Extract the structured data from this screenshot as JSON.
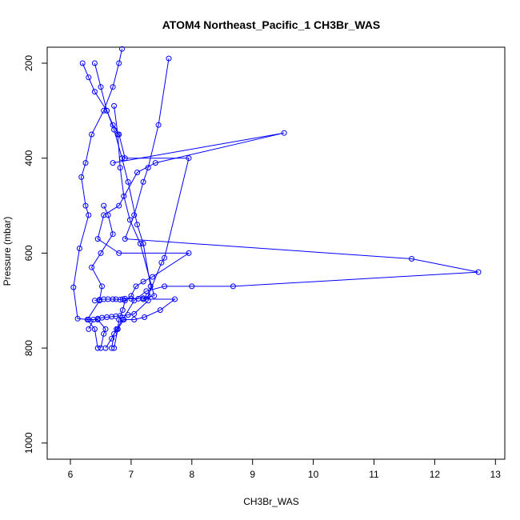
{
  "chart_data": {
    "type": "line",
    "title": "ATOM4 Northeast_Pacific_1 CH3Br_WAS",
    "xlabel": "CH3Br_WAS",
    "ylabel": "Pressure (mbar)",
    "xlim": [
      5.6,
      13.0
    ],
    "ylim": [
      1030,
      160
    ],
    "y_reversed": true,
    "grid": false,
    "legend": "none",
    "xticks": [
      6,
      7,
      8,
      9,
      10,
      11,
      12,
      13
    ],
    "yticks": [
      200,
      400,
      600,
      800,
      1000
    ],
    "series_color": "#0000ff",
    "series": [
      {
        "x": [
          6.45,
          6.4,
          6.28,
          6.48,
          6.52,
          6.35,
          6.5,
          6.7,
          6.62,
          6.55
        ],
        "y": [
          800,
          760,
          740,
          700,
          670,
          630,
          600,
          560,
          520,
          500
        ]
      },
      {
        "x": [
          6.5,
          6.55,
          6.58,
          6.45,
          6.3,
          6.12,
          6.05,
          6.15,
          6.3,
          6.25,
          6.18,
          6.25,
          6.35,
          6.55,
          6.7,
          6.8,
          6.85
        ],
        "y": [
          800,
          770,
          760,
          740,
          740,
          738,
          672,
          590,
          520,
          500,
          440,
          410,
          350,
          300,
          250,
          200,
          170
        ]
      },
      {
        "x": [
          6.58,
          6.68,
          6.76,
          6.86,
          7.05,
          7.25,
          7.55,
          8.0,
          8.68,
          12.72,
          11.62,
          6.9,
          7.05,
          7.2,
          7.28,
          7.45,
          7.62
        ],
        "y": [
          800,
          780,
          760,
          740,
          700,
          680,
          670,
          670,
          670,
          640,
          612,
          570,
          520,
          450,
          420,
          330,
          190
        ]
      },
      {
        "x": [
          6.68,
          6.72,
          6.78,
          6.8,
          6.86,
          6.9,
          7.0,
          7.08,
          7.2,
          7.35,
          7.95,
          6.8,
          6.45,
          6.55,
          6.8,
          7.1,
          7.4,
          9.52,
          6.7
        ],
        "y": [
          800,
          770,
          760,
          740,
          720,
          700,
          690,
          670,
          660,
          650,
          600,
          600,
          570,
          520,
          500,
          430,
          410,
          347,
          410
        ]
      },
      {
        "x": [
          6.72,
          6.78,
          6.88,
          7.05,
          7.22,
          7.48,
          7.72,
          7.2,
          7.28,
          7.5,
          7.55,
          7.95,
          6.9,
          6.8,
          6.7,
          6.6,
          6.4,
          6.3,
          6.2
        ],
        "y": [
          800,
          760,
          740,
          740,
          735,
          720,
          697,
          697,
          690,
          620,
          610,
          400,
          400,
          350,
          330,
          300,
          260,
          230,
          200
        ]
      },
      {
        "x": [
          6.3,
          6.38,
          6.45,
          6.52,
          6.6,
          6.68,
          6.75,
          6.82,
          6.95,
          7.05,
          7.28,
          7.32,
          7.2,
          7.1,
          6.95,
          6.85,
          6.72,
          6.6,
          6.5,
          6.4
        ],
        "y": [
          760,
          740,
          738,
          736,
          735,
          734,
          733,
          732,
          730,
          728,
          700,
          670,
          580,
          540,
          450,
          400,
          340,
          300,
          250,
          200
        ]
      },
      {
        "x": [
          6.4,
          6.48,
          6.55,
          6.62,
          6.7,
          6.75,
          6.82,
          6.86,
          6.9,
          7.0,
          7.12,
          7.2,
          7.38,
          7.15,
          6.98,
          6.88,
          6.82,
          6.78,
          6.72
        ],
        "y": [
          700,
          698,
          697,
          697,
          697,
          697,
          698,
          697,
          696,
          696,
          696,
          695,
          690,
          580,
          530,
          480,
          420,
          350,
          290
        ]
      }
    ]
  }
}
